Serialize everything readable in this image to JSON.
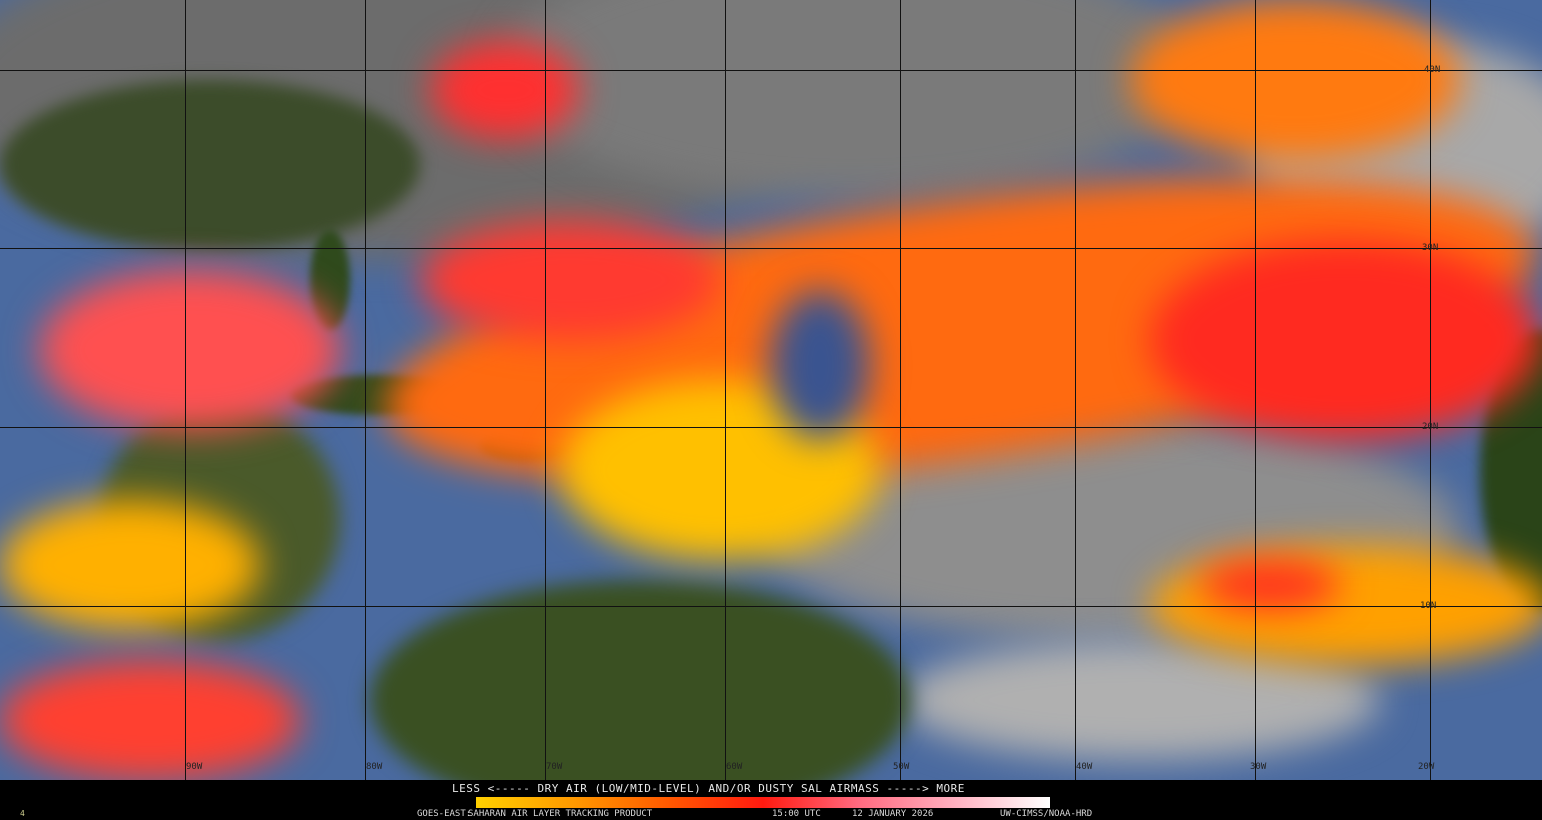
{
  "product": {
    "legend_title": "LESS <----- DRY AIR (LOW/MID-LEVEL) AND/OR DUSTY SAL AIRMASS -----> MORE",
    "satellite": "GOES-EAST:",
    "product_name": "SAHARAN AIR LAYER TRACKING PRODUCT",
    "time": "15:00 UTC",
    "date": "12 JANUARY 2026",
    "credit": "UW-CIMSS/NOAA-HRD",
    "corner_mark": "4"
  },
  "colorbar": {
    "stops": [
      "#ffd000",
      "#ff9a00",
      "#ff5a00",
      "#ff1a10",
      "#ff6a80",
      "#ffb0c0",
      "#ffffff"
    ],
    "min_label": "LESS",
    "max_label": "MORE"
  },
  "grid": {
    "longitudes": [
      "90W",
      "80W",
      "70W",
      "60W",
      "50W",
      "40W",
      "30W",
      "20W"
    ],
    "latitudes": [
      "40N",
      "30N",
      "20N",
      "10N"
    ]
  },
  "colors": {
    "ocean": "#4a6aa0",
    "land": "#2f4a1c",
    "clouds": "#9a9a9a",
    "dry_air_low": "#ffd000",
    "dry_air_high": "#ff2020"
  }
}
